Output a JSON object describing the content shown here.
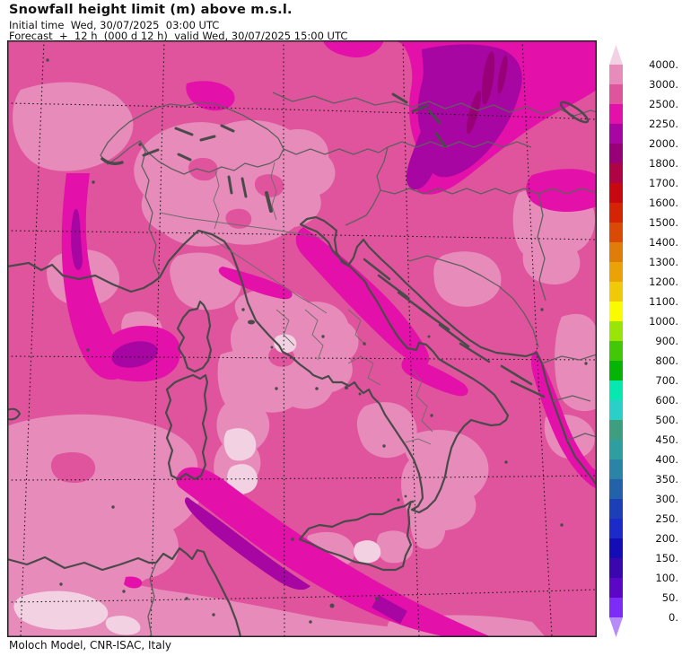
{
  "header": {
    "title": "Snowfall height limit (m) above m.s.l.",
    "initial_time_line": "Initial time  Wed, 30/07/2025  03:00 UTC",
    "forecast_line": "Forecast  +  12 h  (000 d 12 h)  valid Wed, 30/07/2025 15:00 UTC"
  },
  "footer": {
    "credit": "Moloch Model, CNR-ISAC, Italy"
  },
  "colorbar": {
    "labels": [
      "4000.",
      "3000.",
      "2500.",
      "2250.",
      "2000.",
      "1800.",
      "1700.",
      "1600.",
      "1500.",
      "1400.",
      "1300.",
      "1200.",
      "1100.",
      "1000.",
      "900.",
      "800.",
      "700.",
      "600.",
      "500.",
      "450.",
      "400.",
      "350.",
      "300.",
      "250.",
      "200.",
      "150.",
      "100.",
      "50.",
      "0."
    ],
    "levels_m": [
      4000,
      3000,
      2500,
      2250,
      2000,
      1800,
      1700,
      1600,
      1500,
      1400,
      1300,
      1200,
      1100,
      1000,
      900,
      800,
      700,
      600,
      500,
      450,
      400,
      350,
      300,
      250,
      200,
      150,
      100,
      50,
      0
    ],
    "band_colors_top_to_bottom": [
      "#e78cba",
      "#e0549e",
      "#e410aa",
      "#a806a2",
      "#980078",
      "#ae0446",
      "#c80810",
      "#d42404",
      "#d84a06",
      "#e07c08",
      "#eaa206",
      "#f0ca08",
      "#fafa00",
      "#9ae408",
      "#42c806",
      "#06b406",
      "#06e8b0",
      "#2ad0c8",
      "#3e9e80",
      "#2e9ea0",
      "#2a84a6",
      "#2162a8",
      "#1c3eb6",
      "#1b2ac8",
      "#140cb4",
      "#3a06ae",
      "#5c06c8",
      "#7c2cf6"
    ],
    "arrow_top_color": "#f2d2e2",
    "arrow_bottom_color": "#b88cf8"
  },
  "map": {
    "palette": {
      "base": "#e0549e",
      "light": "#e78cba",
      "vlight": "#f2d2e2",
      "magenta": "#e410aa",
      "purple": "#a806a2",
      "darkpurple": "#980078",
      "coast": "#4a4a4a",
      "border": "#5f5f5f",
      "thinborder": "#6b6b6b",
      "graticule": "#161616",
      "frame": "#222222"
    }
  }
}
